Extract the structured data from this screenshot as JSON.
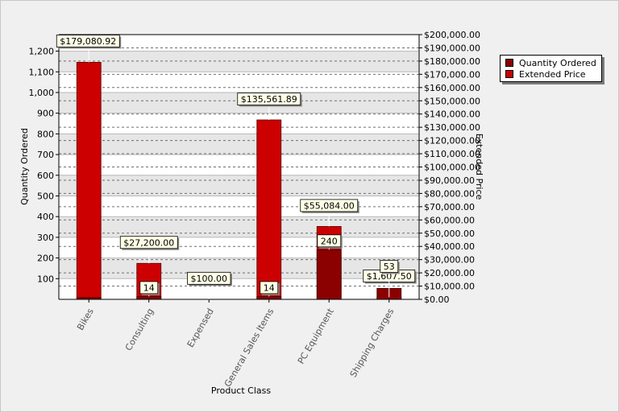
{
  "chart_data": {
    "type": "bar",
    "title": "",
    "xlabel": "Product Class",
    "ylabel": "Quantity Ordered",
    "y2label": "Extended Price",
    "categories": [
      "Bikes",
      "Consulting",
      "Expensed",
      "General Sales Items",
      "PC Equipment",
      "Shipping Charges"
    ],
    "ylim": [
      0,
      1280
    ],
    "y2lim": [
      0,
      200000
    ],
    "yticks": [
      "100",
      "200",
      "300",
      "400",
      "500",
      "600",
      "700",
      "800",
      "900",
      "1,000",
      "1,100",
      "1,200"
    ],
    "y2ticks": [
      "$0.00",
      "$10,000.00",
      "$20,000.00",
      "$30,000.00",
      "$40,000.00",
      "$50,000.00",
      "$60,000.00",
      "$70,000.00",
      "$80,000.00",
      "$90,000.00",
      "$100,000.00",
      "$110,000.00",
      "$120,000.00",
      "$130,000.00",
      "$140,000.00",
      "$150,000.00",
      "$160,000.00",
      "$170,000.00",
      "$180,000.00",
      "$190,000.00",
      "$200,000.00"
    ],
    "grid": true,
    "legend_position": "top-right",
    "series": [
      {
        "name": "Quantity Ordered",
        "axis": "left",
        "color": "#8b0000",
        "values": [
          8,
          14,
          0,
          14,
          240,
          53
        ],
        "labels": [
          "",
          "14",
          "",
          "14",
          "240",
          "53"
        ]
      },
      {
        "name": "Extended Price",
        "axis": "right",
        "color": "#cc0000",
        "values": [
          179080.92,
          27200.0,
          100.0,
          135561.89,
          55084.0,
          1607.5
        ],
        "labels": [
          "$179,080.92",
          "$27,200.00",
          "$100.00",
          "$135,561.89",
          "$55,084.00",
          "$1,607.50"
        ]
      }
    ]
  }
}
